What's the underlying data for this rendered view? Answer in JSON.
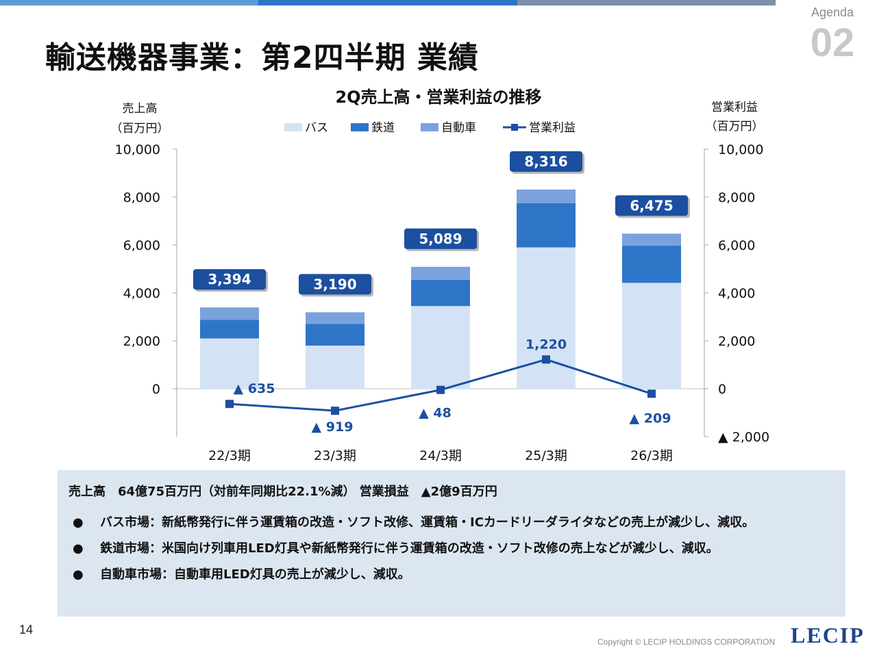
{
  "header": {
    "agenda_label": "Agenda",
    "agenda_number": "02",
    "title": "輸送機器事業：第2四半期 業績",
    "bar_colors": [
      "#5b9bd5",
      "#2e75c8",
      "#7f8fa9"
    ]
  },
  "chart_data": {
    "type": "bar",
    "title": "2Q売上高・営業利益の推移",
    "categories": [
      "22/3期",
      "23/3期",
      "24/3期",
      "25/3期",
      "26/3期"
    ],
    "series": [
      {
        "name": "バス",
        "kind": "bar",
        "color": "#d3e3f5",
        "values": [
          2100,
          1800,
          3450,
          5900,
          4420
        ]
      },
      {
        "name": "鉄道",
        "kind": "bar",
        "color": "#2e75c8",
        "values": [
          780,
          900,
          1100,
          1850,
          1550
        ]
      },
      {
        "name": "自動車",
        "kind": "bar",
        "color": "#7aa2dc",
        "values": [
          514,
          490,
          539,
          566,
          505
        ]
      },
      {
        "name": "営業利益",
        "kind": "line",
        "color": "#1c4fa0",
        "axis": "right",
        "values": [
          -635,
          -919,
          -48,
          1220,
          -209
        ]
      }
    ],
    "totals": [
      3394,
      3190,
      5089,
      8316,
      6475
    ],
    "total_labels": [
      "3,394",
      "3,190",
      "5,089",
      "8,316",
      "6,475"
    ],
    "profit_labels": [
      "▲ 635",
      "▲ 919",
      "▲ 48",
      "1,220",
      "▲ 209"
    ],
    "y_left": {
      "label_line1": "売上高",
      "label_line2": "（百万円）",
      "range": [
        -2000,
        10000
      ],
      "ticks": [
        0,
        2000,
        4000,
        6000,
        8000,
        10000
      ],
      "tick_labels": [
        "0",
        "2,000",
        "4,000",
        "6,000",
        "8,000",
        "10,000"
      ]
    },
    "y_right": {
      "label_line1": "営業利益",
      "label_line2": "（百万円）",
      "range": [
        -2000,
        10000
      ],
      "ticks": [
        -2000,
        0,
        2000,
        4000,
        6000,
        8000,
        10000
      ],
      "tick_labels": [
        "▲ 2,000",
        "0",
        "2,000",
        "4,000",
        "6,000",
        "8,000",
        "10,000"
      ]
    },
    "legend_position": "top-center",
    "label_box_color": "#1c4fa0"
  },
  "summary": {
    "main": "売上高　64億75百万円（対前年同期比22.1%減） 営業損益　▲2億9百万円",
    "bullet_symbol": "●",
    "bullets": [
      "バス市場：新紙幣発行に伴う運賃箱の改造・ソフト改修、運賃箱・ICカードリーダライタなどの売上が減少し、減収。",
      "鉄道市場：米国向け列車用LED灯具や新紙幣発行に伴う運賃箱の改造・ソフト改修の売上などが減少し、減収。",
      "自動車市場：自動車用LED灯具の売上が減少し、減収。"
    ]
  },
  "footer": {
    "page_number": "14",
    "copyright": "Copyright © LECIP HOLDINGS CORPORATION",
    "logo_text": "LECIP"
  }
}
